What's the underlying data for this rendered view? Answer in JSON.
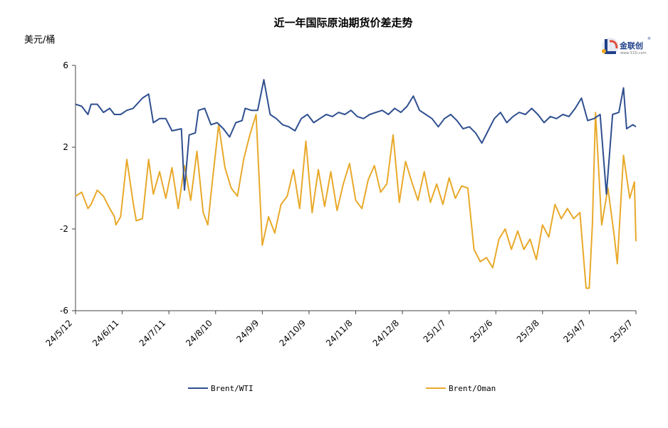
{
  "logo": {
    "name": "金联创",
    "registered": "®",
    "url": "www.315i.com"
  },
  "chart_data": {
    "type": "line",
    "title": "近一年国际原油期货价差走势",
    "ylabel": "美元/桶",
    "xlabel": "",
    "ylim": [
      -6,
      6
    ],
    "yticks": [
      6,
      2,
      -2,
      -6
    ],
    "ytick_labels": [
      "6",
      "2",
      "-2",
      "-6"
    ],
    "xticks": [
      "24/5/12",
      "24/6/11",
      "24/7/11",
      "24/8/10",
      "24/9/9",
      "24/10/9",
      "24/11/8",
      "24/12/8",
      "25/1/7",
      "25/2/6",
      "25/3/8",
      "25/4/7",
      "25/5/7"
    ],
    "x_start": "2024-05-12",
    "x_end": "2025-05-07",
    "legend_position": "bottom",
    "grid": false,
    "series": [
      {
        "name": "Brent/WTI",
        "color": "#2f4f8f",
        "points": [
          [
            "2024-05-12",
            4.1
          ],
          [
            "2024-05-16",
            4.0
          ],
          [
            "2024-05-20",
            3.6
          ],
          [
            "2024-05-22",
            4.1
          ],
          [
            "2024-05-26",
            4.1
          ],
          [
            "2024-05-30",
            3.7
          ],
          [
            "2024-06-03",
            3.9
          ],
          [
            "2024-06-06",
            3.6
          ],
          [
            "2024-06-10",
            3.6
          ],
          [
            "2024-06-14",
            3.8
          ],
          [
            "2024-06-18",
            3.9
          ],
          [
            "2024-06-24",
            4.4
          ],
          [
            "2024-06-28",
            4.6
          ],
          [
            "2024-07-01",
            3.2
          ],
          [
            "2024-07-05",
            3.4
          ],
          [
            "2024-07-09",
            3.4
          ],
          [
            "2024-07-13",
            2.8
          ],
          [
            "2024-07-19",
            2.9
          ],
          [
            "2024-07-21",
            -0.1
          ],
          [
            "2024-07-24",
            2.6
          ],
          [
            "2024-07-28",
            2.7
          ],
          [
            "2024-07-30",
            3.8
          ],
          [
            "2024-08-03",
            3.9
          ],
          [
            "2024-08-07",
            3.1
          ],
          [
            "2024-08-11",
            3.2
          ],
          [
            "2024-08-15",
            2.9
          ],
          [
            "2024-08-19",
            2.5
          ],
          [
            "2024-08-23",
            3.2
          ],
          [
            "2024-08-27",
            3.3
          ],
          [
            "2024-08-29",
            3.9
          ],
          [
            "2024-09-02",
            3.8
          ],
          [
            "2024-09-06",
            3.8
          ],
          [
            "2024-09-10",
            5.3
          ],
          [
            "2024-09-14",
            3.6
          ],
          [
            "2024-09-18",
            3.4
          ],
          [
            "2024-09-22",
            3.1
          ],
          [
            "2024-09-26",
            3.0
          ],
          [
            "2024-09-30",
            2.8
          ],
          [
            "2024-10-04",
            3.4
          ],
          [
            "2024-10-08",
            3.6
          ],
          [
            "2024-10-12",
            3.2
          ],
          [
            "2024-10-16",
            3.4
          ],
          [
            "2024-10-20",
            3.6
          ],
          [
            "2024-10-24",
            3.5
          ],
          [
            "2024-10-28",
            3.7
          ],
          [
            "2024-11-01",
            3.6
          ],
          [
            "2024-11-05",
            3.8
          ],
          [
            "2024-11-09",
            3.5
          ],
          [
            "2024-11-13",
            3.4
          ],
          [
            "2024-11-17",
            3.6
          ],
          [
            "2024-11-21",
            3.7
          ],
          [
            "2024-11-25",
            3.8
          ],
          [
            "2024-11-29",
            3.6
          ],
          [
            "2024-12-03",
            3.9
          ],
          [
            "2024-12-07",
            3.7
          ],
          [
            "2024-12-11",
            4.0
          ],
          [
            "2024-12-15",
            4.5
          ],
          [
            "2024-12-19",
            3.8
          ],
          [
            "2024-12-23",
            3.6
          ],
          [
            "2024-12-27",
            3.4
          ],
          [
            "2024-12-31",
            3.0
          ],
          [
            "2025-01-04",
            3.4
          ],
          [
            "2025-01-08",
            3.6
          ],
          [
            "2025-01-12",
            3.3
          ],
          [
            "2025-01-16",
            2.9
          ],
          [
            "2025-01-20",
            3.0
          ],
          [
            "2025-01-24",
            2.7
          ],
          [
            "2025-01-28",
            2.2
          ],
          [
            "2025-02-01",
            2.8
          ],
          [
            "2025-02-05",
            3.4
          ],
          [
            "2025-02-09",
            3.7
          ],
          [
            "2025-02-13",
            3.2
          ],
          [
            "2025-02-17",
            3.5
          ],
          [
            "2025-02-21",
            3.7
          ],
          [
            "2025-02-25",
            3.6
          ],
          [
            "2025-03-01",
            3.9
          ],
          [
            "2025-03-05",
            3.6
          ],
          [
            "2025-03-09",
            3.2
          ],
          [
            "2025-03-13",
            3.5
          ],
          [
            "2025-03-17",
            3.4
          ],
          [
            "2025-03-21",
            3.6
          ],
          [
            "2025-03-25",
            3.5
          ],
          [
            "2025-03-29",
            3.9
          ],
          [
            "2025-04-02",
            4.4
          ],
          [
            "2025-04-06",
            3.3
          ],
          [
            "2025-04-10",
            3.4
          ],
          [
            "2025-04-14",
            3.6
          ],
          [
            "2025-04-18",
            -0.3
          ],
          [
            "2025-04-22",
            3.6
          ],
          [
            "2025-04-26",
            3.7
          ],
          [
            "2025-04-29",
            4.9
          ],
          [
            "2025-05-01",
            2.9
          ],
          [
            "2025-05-05",
            3.1
          ],
          [
            "2025-05-07",
            3.0
          ]
        ]
      },
      {
        "name": "Brent/Oman",
        "color": "#e8a92a",
        "points": [
          [
            "2024-05-12",
            -0.4
          ],
          [
            "2024-05-16",
            -0.2
          ],
          [
            "2024-05-20",
            -1.0
          ],
          [
            "2024-05-22",
            -0.8
          ],
          [
            "2024-05-26",
            -0.1
          ],
          [
            "2024-05-30",
            -0.4
          ],
          [
            "2024-06-03",
            -1.0
          ],
          [
            "2024-06-06",
            -1.4
          ],
          [
            "2024-06-07",
            -1.8
          ],
          [
            "2024-06-10",
            -1.4
          ],
          [
            "2024-06-14",
            1.4
          ],
          [
            "2024-06-18",
            -0.7
          ],
          [
            "2024-06-20",
            -1.6
          ],
          [
            "2024-06-24",
            -1.5
          ],
          [
            "2024-06-28",
            1.4
          ],
          [
            "2024-07-01",
            -0.3
          ],
          [
            "2024-07-05",
            0.8
          ],
          [
            "2024-07-09",
            -0.5
          ],
          [
            "2024-07-13",
            1.0
          ],
          [
            "2024-07-17",
            -1.0
          ],
          [
            "2024-07-21",
            1.1
          ],
          [
            "2024-07-25",
            -0.6
          ],
          [
            "2024-07-29",
            1.8
          ],
          [
            "2024-08-02",
            -1.2
          ],
          [
            "2024-08-05",
            -1.8
          ],
          [
            "2024-08-08",
            0.4
          ],
          [
            "2024-08-12",
            3.1
          ],
          [
            "2024-08-16",
            1.0
          ],
          [
            "2024-08-20",
            0.0
          ],
          [
            "2024-08-24",
            -0.4
          ],
          [
            "2024-08-28",
            1.4
          ],
          [
            "2024-09-01",
            2.6
          ],
          [
            "2024-09-05",
            3.6
          ],
          [
            "2024-09-09",
            -2.8
          ],
          [
            "2024-09-13",
            -1.4
          ],
          [
            "2024-09-17",
            -2.2
          ],
          [
            "2024-09-21",
            -0.8
          ],
          [
            "2024-09-25",
            -0.4
          ],
          [
            "2024-09-29",
            0.9
          ],
          [
            "2024-10-03",
            -1.0
          ],
          [
            "2024-10-07",
            2.3
          ],
          [
            "2024-10-11",
            -1.2
          ],
          [
            "2024-10-15",
            0.9
          ],
          [
            "2024-10-19",
            -0.9
          ],
          [
            "2024-10-23",
            0.8
          ],
          [
            "2024-10-27",
            -1.1
          ],
          [
            "2024-10-31",
            0.2
          ],
          [
            "2024-11-04",
            1.2
          ],
          [
            "2024-11-08",
            -0.6
          ],
          [
            "2024-11-12",
            -1.0
          ],
          [
            "2024-11-16",
            0.4
          ],
          [
            "2024-11-20",
            1.1
          ],
          [
            "2024-11-24",
            -0.2
          ],
          [
            "2024-11-28",
            0.2
          ],
          [
            "2024-12-02",
            2.6
          ],
          [
            "2024-12-06",
            -0.7
          ],
          [
            "2024-12-10",
            1.3
          ],
          [
            "2024-12-14",
            0.3
          ],
          [
            "2024-12-18",
            -0.6
          ],
          [
            "2024-12-22",
            0.8
          ],
          [
            "2024-12-26",
            -0.7
          ],
          [
            "2024-12-30",
            0.2
          ],
          [
            "2025-01-03",
            -0.8
          ],
          [
            "2025-01-07",
            0.5
          ],
          [
            "2025-01-11",
            -0.5
          ],
          [
            "2025-01-15",
            0.1
          ],
          [
            "2025-01-19",
            0.0
          ],
          [
            "2025-01-23",
            -3.0
          ],
          [
            "2025-01-27",
            -3.6
          ],
          [
            "2025-01-31",
            -3.4
          ],
          [
            "2025-02-04",
            -3.9
          ],
          [
            "2025-02-08",
            -2.5
          ],
          [
            "2025-02-12",
            -2.0
          ],
          [
            "2025-02-16",
            -3.0
          ],
          [
            "2025-02-20",
            -2.1
          ],
          [
            "2025-02-24",
            -3.0
          ],
          [
            "2025-02-28",
            -2.5
          ],
          [
            "2025-03-04",
            -3.5
          ],
          [
            "2025-03-08",
            -1.8
          ],
          [
            "2025-03-12",
            -2.4
          ],
          [
            "2025-03-16",
            -0.8
          ],
          [
            "2025-03-20",
            -1.5
          ],
          [
            "2025-03-24",
            -1.0
          ],
          [
            "2025-03-28",
            -1.5
          ],
          [
            "2025-04-01",
            -1.2
          ],
          [
            "2025-04-05",
            -4.9
          ],
          [
            "2025-04-07",
            -4.9
          ],
          [
            "2025-04-09",
            -1.8
          ],
          [
            "2025-04-11",
            3.7
          ],
          [
            "2025-04-15",
            -1.8
          ],
          [
            "2025-04-19",
            0.0
          ],
          [
            "2025-04-23",
            -2.3
          ],
          [
            "2025-04-25",
            -3.7
          ],
          [
            "2025-04-29",
            1.6
          ],
          [
            "2025-05-03",
            -0.5
          ],
          [
            "2025-05-06",
            0.3
          ],
          [
            "2025-05-07",
            -2.6
          ]
        ]
      }
    ]
  }
}
